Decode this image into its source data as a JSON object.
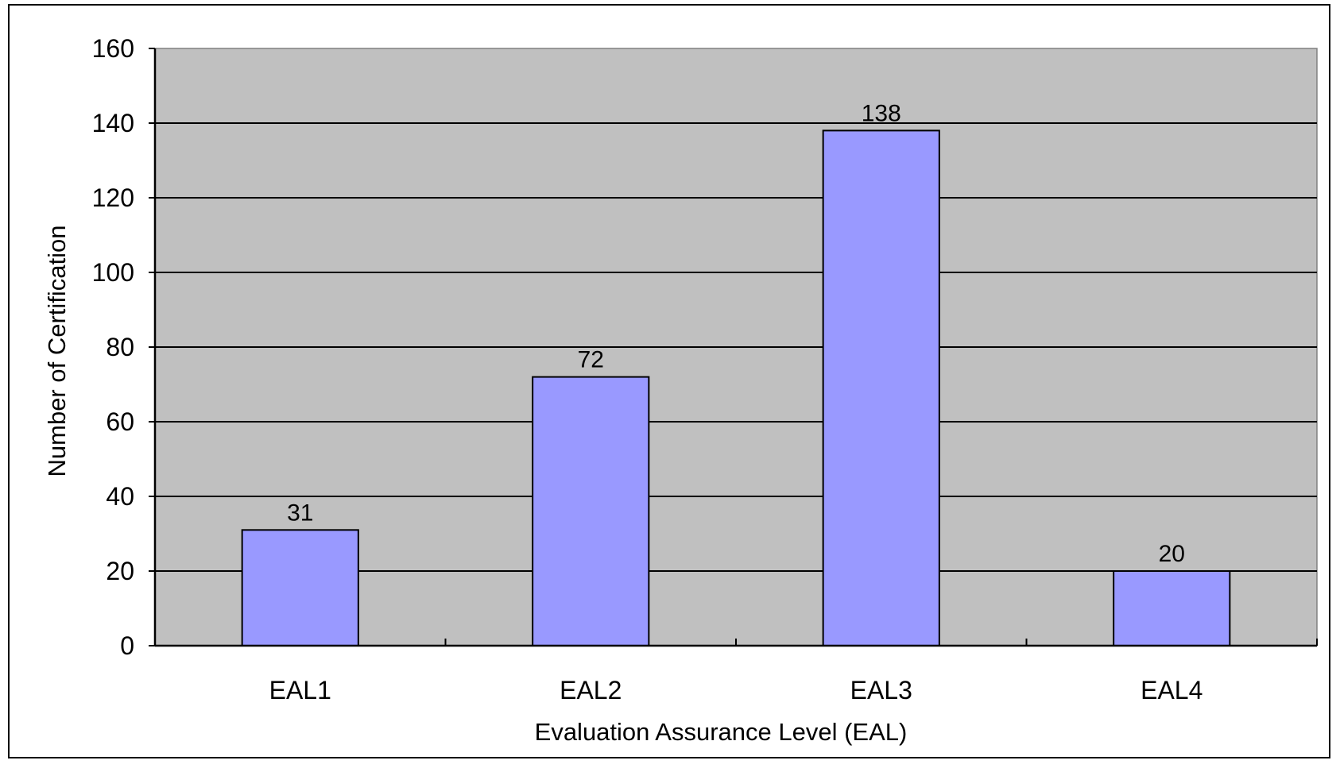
{
  "chart_data": {
    "type": "bar",
    "categories": [
      "EAL1",
      "EAL2",
      "EAL3",
      "EAL4"
    ],
    "values": [
      31,
      72,
      138,
      20
    ],
    "data_labels": [
      "31",
      "72",
      "138",
      "20"
    ],
    "title": "",
    "xlabel": "Evaluation Assurance Level (EAL)",
    "ylabel": "Number of Certification",
    "ylim": [
      0,
      160
    ],
    "yticks": [
      0,
      20,
      40,
      60,
      80,
      100,
      120,
      140,
      160
    ],
    "ytick_labels": [
      "0",
      "20",
      "40",
      "60",
      "80",
      "100",
      "120",
      "140",
      "160"
    ],
    "grid": true,
    "legend": "none",
    "colors": {
      "bar_fill": "#9999ff",
      "plot_background": "#c0c0c0",
      "gridline": "#000000",
      "bar_stroke": "#000000"
    }
  }
}
